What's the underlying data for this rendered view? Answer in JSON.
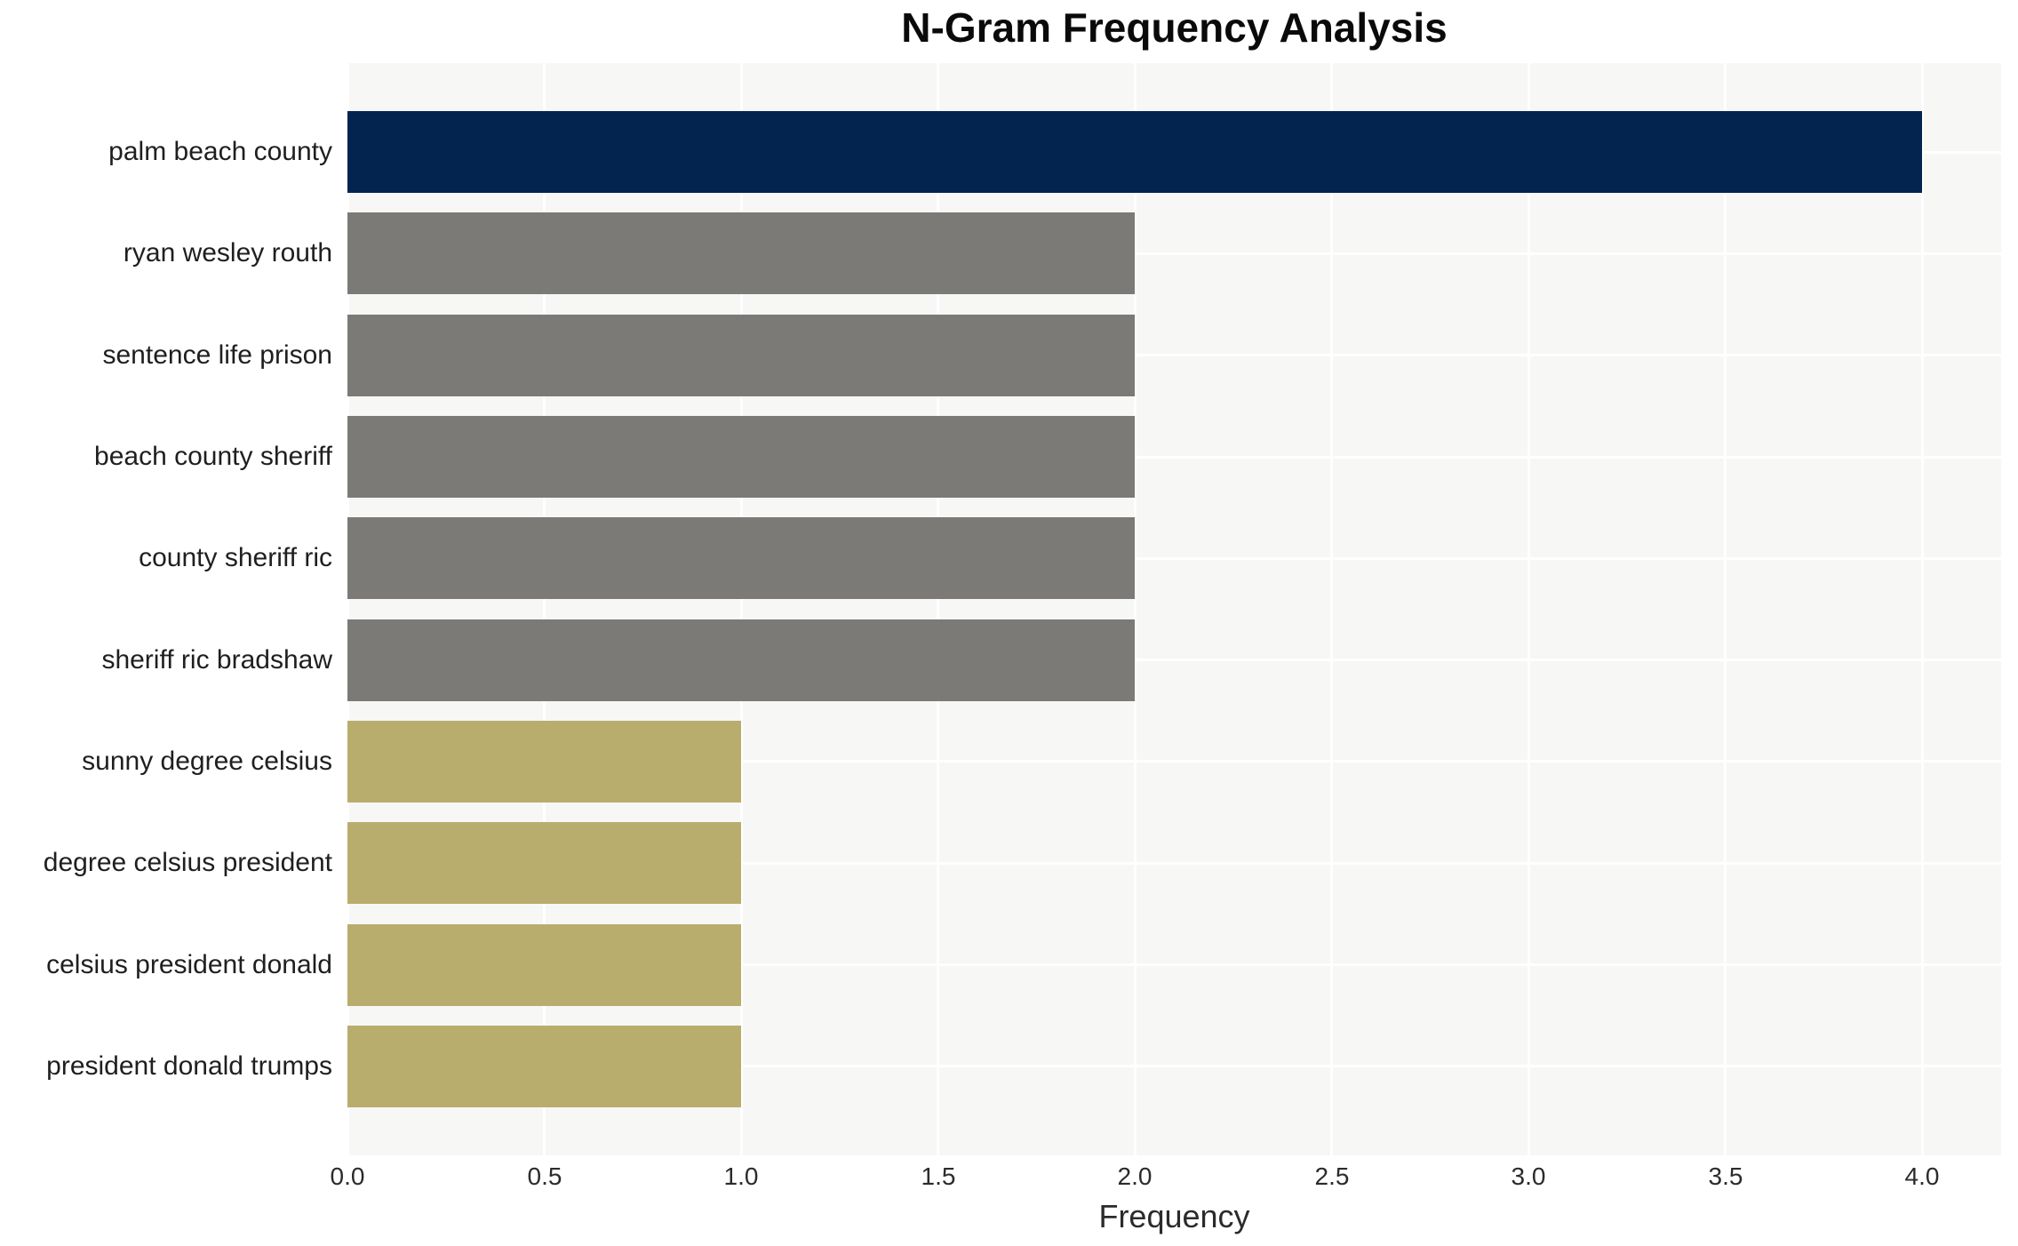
{
  "title": "N-Gram Frequency Analysis",
  "chart_data": {
    "type": "bar",
    "orientation": "horizontal",
    "title": "N-Gram Frequency Analysis",
    "xlabel": "Frequency",
    "ylabel": "",
    "categories": [
      "palm beach county",
      "ryan wesley routh",
      "sentence life prison",
      "beach county sheriff",
      "county sheriff ric",
      "sheriff ric bradshaw",
      "sunny degree celsius",
      "degree celsius president",
      "celsius president donald",
      "president donald trumps"
    ],
    "values": [
      4,
      2,
      2,
      2,
      2,
      2,
      1,
      1,
      1,
      1
    ],
    "bar_colors": [
      "#02244f",
      "#7b7a77",
      "#7b7a77",
      "#7b7a77",
      "#7b7a77",
      "#7b7a77",
      "#b9ad6e",
      "#b9ad6e",
      "#b9ad6e",
      "#b9ad6e"
    ],
    "xlim": [
      0,
      4.2
    ],
    "xticks": [
      "0.0",
      "0.5",
      "1.0",
      "1.5",
      "2.0",
      "2.5",
      "3.0",
      "3.5",
      "4.0"
    ],
    "xtick_values": [
      0,
      0.5,
      1,
      1.5,
      2,
      2.5,
      3,
      3.5,
      4
    ],
    "grid": true,
    "legend": false,
    "plot_bg_color": "#f7f7f6",
    "grid_color": "#ffffff",
    "figure_bg_color": "#ffffff"
  }
}
